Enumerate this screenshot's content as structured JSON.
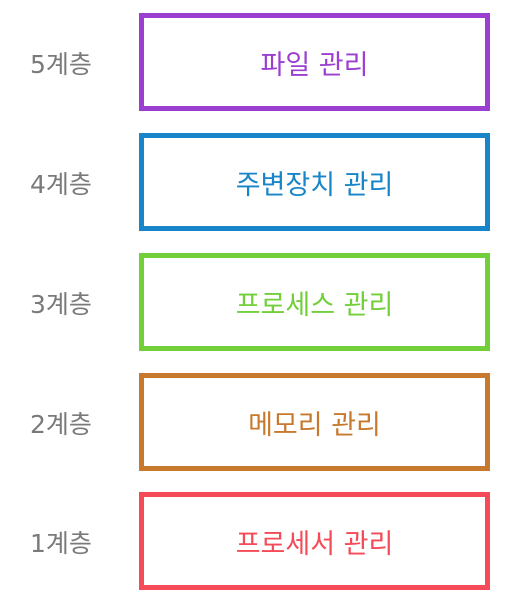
{
  "layers": [
    {
      "level": "5계층",
      "name": "파일 관리",
      "color": "#9b3fd0"
    },
    {
      "level": "4계층",
      "name": "주변장치 관리",
      "color": "#1785c7"
    },
    {
      "level": "3계층",
      "name": "프로세스 관리",
      "color": "#72cf3a"
    },
    {
      "level": "2계층",
      "name": "메모리 관리",
      "color": "#c77a2e"
    },
    {
      "level": "1계층",
      "name": "프로세서 관리",
      "color": "#f54a57"
    }
  ]
}
